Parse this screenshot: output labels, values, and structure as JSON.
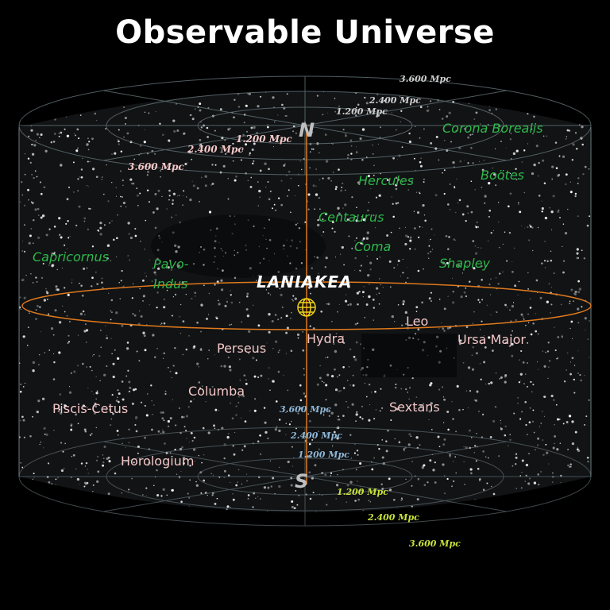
{
  "title": "Observable Universe",
  "poles": {
    "north": "N",
    "south": "S"
  },
  "center_label": "LANIAKEA",
  "superclusters_north": [
    "Corona Borealis",
    "Boötes",
    "Hercules",
    "Centaurus",
    "Coma",
    "Shapley",
    "Capricornus",
    "Pavo-",
    "Indus"
  ],
  "superclusters_south": [
    "Leo",
    "Ursa Major",
    "Hydra",
    "Perseus",
    "Columba",
    "Piscis-Cetus",
    "Sextans",
    "Horologium"
  ],
  "distance_labels": {
    "north_left": [
      "1.200 Mpc",
      "2.400 Mpc",
      "3.600 Mpc"
    ],
    "north_right": [
      "3.600 Mpc",
      "2.400 Mpc",
      "1.200 Mpc"
    ],
    "south_center": [
      "3.600 Mpc",
      "2.400 Mpc",
      "1.200 Mpc"
    ],
    "south_right": [
      "1.200 Mpc",
      "2.400 Mpc",
      "3.600 Mpc"
    ]
  },
  "colors": {
    "axis": "#e07a1c",
    "north_labels": "#2eb84a",
    "south_labels": "#f4c7c7",
    "grid": "#6b7b80",
    "earth_icon": "#f2d21a"
  }
}
